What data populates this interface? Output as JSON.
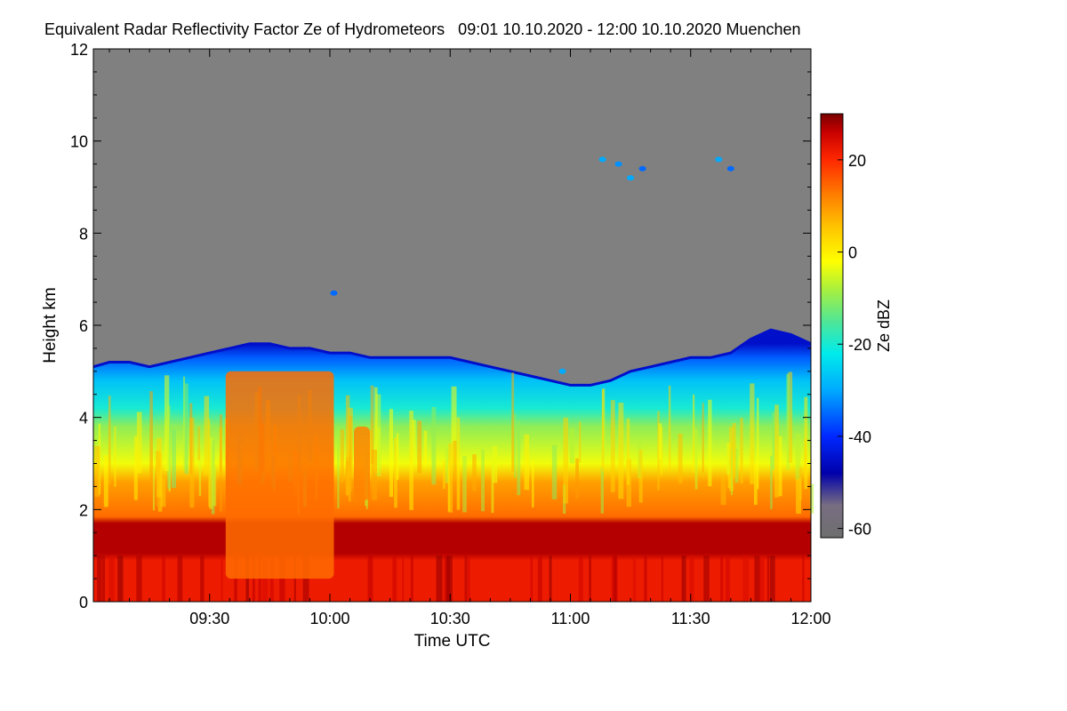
{
  "chart_data": {
    "type": "heatmap",
    "title": "Equivalent Radar Reflectivity Factor Ze of Hydrometeors   09:01 10.10.2020 - 12:00 10.10.2020 Muenchen",
    "xlabel": "Time UTC",
    "ylabel": "Height km",
    "x_range_minutes": [
      541,
      720
    ],
    "x_ticks": [
      {
        "label": "09:30",
        "minutes": 570
      },
      {
        "label": "10:00",
        "minutes": 600
      },
      {
        "label": "10:30",
        "minutes": 630
      },
      {
        "label": "11:00",
        "minutes": 660
      },
      {
        "label": "11:30",
        "minutes": 690
      },
      {
        "label": "12:00",
        "minutes": 720
      }
    ],
    "ylim": [
      0,
      12
    ],
    "y_ticks": [
      0,
      2,
      4,
      6,
      8,
      10,
      12
    ],
    "colorbar": {
      "label": "Ze dBZ",
      "range": [
        -62,
        30
      ],
      "ticks": [
        -60,
        -40,
        -20,
        0,
        20
      ]
    },
    "background_color": "#808080",
    "echo_top_km": [
      [
        541,
        5.1
      ],
      [
        545,
        5.2
      ],
      [
        550,
        5.2
      ],
      [
        555,
        5.1
      ],
      [
        560,
        5.2
      ],
      [
        565,
        5.3
      ],
      [
        570,
        5.4
      ],
      [
        575,
        5.5
      ],
      [
        580,
        5.6
      ],
      [
        585,
        5.6
      ],
      [
        590,
        5.5
      ],
      [
        595,
        5.5
      ],
      [
        600,
        5.4
      ],
      [
        605,
        5.4
      ],
      [
        610,
        5.3
      ],
      [
        615,
        5.3
      ],
      [
        620,
        5.3
      ],
      [
        625,
        5.3
      ],
      [
        630,
        5.3
      ],
      [
        635,
        5.2
      ],
      [
        640,
        5.1
      ],
      [
        645,
        5.0
      ],
      [
        650,
        4.9
      ],
      [
        655,
        4.8
      ],
      [
        660,
        4.7
      ],
      [
        665,
        4.7
      ],
      [
        670,
        4.8
      ],
      [
        675,
        5.0
      ],
      [
        680,
        5.1
      ],
      [
        685,
        5.2
      ],
      [
        690,
        5.3
      ],
      [
        695,
        5.3
      ],
      [
        700,
        5.4
      ],
      [
        705,
        5.7
      ],
      [
        710,
        5.9
      ],
      [
        715,
        5.8
      ],
      [
        720,
        5.6
      ]
    ],
    "layers": [
      {
        "name": "cloud-top",
        "from_km": 4.1,
        "to_km": "echo_top",
        "ze_dbz": -25
      },
      {
        "name": "mid-cloud",
        "from_km": 2.8,
        "to_km": 4.1,
        "ze_dbz": -8
      },
      {
        "name": "lower-cloud",
        "from_km": 1.8,
        "to_km": 2.8,
        "ze_dbz": 8
      },
      {
        "name": "melting-layer",
        "from_km": 1.0,
        "to_km": 1.8,
        "ze_dbz": 26
      },
      {
        "name": "rain",
        "from_km": 0,
        "to_km": 1.0,
        "ze_dbz": 22
      }
    ],
    "cells": [
      {
        "name": "convective-core-1",
        "t_start": 574,
        "t_end": 601,
        "h_low_km": 0.5,
        "h_high_km": 5.0,
        "ze_dbz": 14
      },
      {
        "name": "convective-streak",
        "t_start": 606,
        "t_end": 610,
        "h_low_km": 2.2,
        "h_high_km": 3.8,
        "ze_dbz": 12
      }
    ],
    "isolated_echoes": [
      {
        "t": 601,
        "h_km": 6.7,
        "ze_dbz": -35
      },
      {
        "t": 668,
        "h_km": 9.6,
        "ze_dbz": -30
      },
      {
        "t": 672,
        "h_km": 9.5,
        "ze_dbz": -32
      },
      {
        "t": 675,
        "h_km": 9.2,
        "ze_dbz": -30
      },
      {
        "t": 678,
        "h_km": 9.4,
        "ze_dbz": -35
      },
      {
        "t": 697,
        "h_km": 9.6,
        "ze_dbz": -30
      },
      {
        "t": 700,
        "h_km": 9.4,
        "ze_dbz": -35
      },
      {
        "t": 658,
        "h_km": 5.0,
        "ze_dbz": -30
      }
    ]
  }
}
